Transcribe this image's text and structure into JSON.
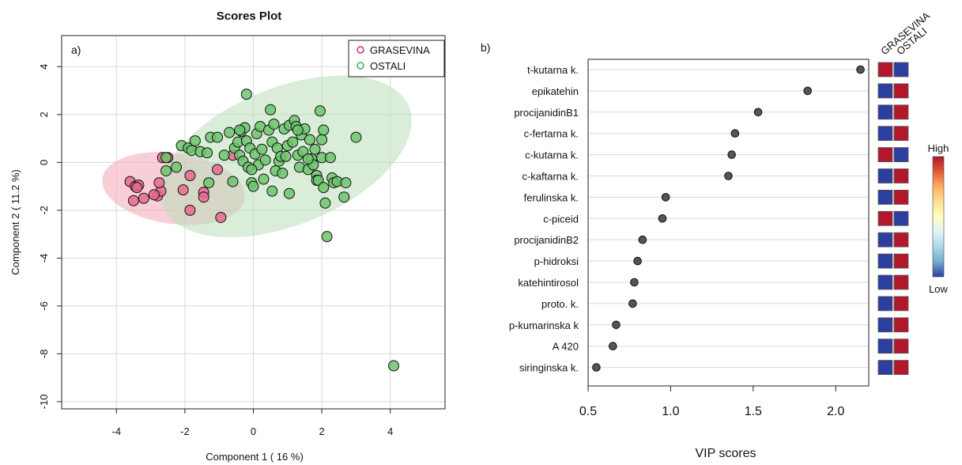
{
  "chart_data": [
    {
      "type": "scatter",
      "panel_label": "a)",
      "title": "Scores Plot",
      "xlabel": "Component 1 ( 16 %)",
      "ylabel": "Component 2 ( 11.2 %)",
      "xlim": [
        -5.6,
        5.6
      ],
      "ylim": [
        -10.3,
        5.3
      ],
      "xticks": [
        -4,
        -2,
        0,
        2,
        4
      ],
      "yticks": [
        -10,
        -8,
        -6,
        -4,
        -2,
        0,
        2,
        4
      ],
      "grid": true,
      "legend_position": "top-right",
      "series": [
        {
          "name": "GRASEVINA",
          "color": "#e8698f",
          "ellipse": {
            "cx": -2.33,
            "cy": -1.09,
            "rx": 2.1,
            "ry": 1.48,
            "angle_deg": 8,
            "fill": "#f2a5b7"
          },
          "points": [
            [
              -3.6,
              -0.8
            ],
            [
              -3.45,
              -1.0
            ],
            [
              -3.35,
              -0.95
            ],
            [
              -3.5,
              -1.6
            ],
            [
              -3.2,
              -1.5
            ],
            [
              -2.8,
              -1.4
            ],
            [
              -2.7,
              -1.2
            ],
            [
              -2.75,
              -0.85
            ],
            [
              -2.65,
              0.2
            ],
            [
              -2.5,
              0.2
            ],
            [
              -2.05,
              -1.15
            ],
            [
              -1.85,
              -0.55
            ],
            [
              -1.85,
              -2.0
            ],
            [
              -1.45,
              -1.25
            ],
            [
              -1.45,
              -1.45
            ],
            [
              -1.05,
              -0.3
            ],
            [
              -0.95,
              -2.3
            ],
            [
              -0.6,
              0.3
            ],
            [
              -3.4,
              -1.05
            ],
            [
              -2.9,
              -1.35
            ]
          ]
        },
        {
          "name": "OSTALI",
          "color": "#6cc46c",
          "ellipse": {
            "cx": 0.95,
            "cy": 0.25,
            "rx": 3.88,
            "ry": 2.87,
            "angle_deg": -22,
            "fill": "#b9dfb9"
          },
          "points": [
            [
              -2.55,
              0.2
            ],
            [
              -2.55,
              -0.35
            ],
            [
              -2.25,
              -0.2
            ],
            [
              -2.1,
              0.7
            ],
            [
              -1.9,
              0.6
            ],
            [
              -1.8,
              0.5
            ],
            [
              -1.7,
              0.9
            ],
            [
              -1.55,
              0.45
            ],
            [
              -1.35,
              0.4
            ],
            [
              -1.3,
              -0.85
            ],
            [
              -1.25,
              1.05
            ],
            [
              -1.05,
              1.05
            ],
            [
              -0.85,
              0.3
            ],
            [
              -0.7,
              1.25
            ],
            [
              -0.6,
              -0.8
            ],
            [
              -0.55,
              0.6
            ],
            [
              -0.45,
              0.85
            ],
            [
              -0.4,
              0.3
            ],
            [
              -0.35,
              1.3
            ],
            [
              -0.3,
              0.05
            ],
            [
              -0.25,
              1.45
            ],
            [
              -0.2,
              0.9
            ],
            [
              -0.2,
              2.85
            ],
            [
              -0.15,
              -0.2
            ],
            [
              -0.1,
              0.6
            ],
            [
              -0.05,
              -0.85
            ],
            [
              0.0,
              -1.0
            ],
            [
              0.05,
              0.35
            ],
            [
              0.1,
              1.2
            ],
            [
              0.15,
              -0.1
            ],
            [
              0.2,
              1.5
            ],
            [
              0.25,
              0.55
            ],
            [
              0.3,
              -0.7
            ],
            [
              0.45,
              1.35
            ],
            [
              0.5,
              2.2
            ],
            [
              0.55,
              0.85
            ],
            [
              0.55,
              -1.2
            ],
            [
              0.6,
              1.6
            ],
            [
              0.65,
              -0.35
            ],
            [
              0.7,
              0.6
            ],
            [
              0.75,
              0.05
            ],
            [
              0.8,
              0.25
            ],
            [
              0.85,
              -0.45
            ],
            [
              0.9,
              1.4
            ],
            [
              1.0,
              0.7
            ],
            [
              1.05,
              1.55
            ],
            [
              1.05,
              -1.3
            ],
            [
              1.15,
              0.85
            ],
            [
              1.2,
              1.75
            ],
            [
              1.25,
              1.5
            ],
            [
              1.3,
              0.3
            ],
            [
              1.35,
              -0.2
            ],
            [
              1.4,
              1.15
            ],
            [
              1.45,
              0.45
            ],
            [
              1.5,
              1.4
            ],
            [
              1.6,
              -0.3
            ],
            [
              1.65,
              0.95
            ],
            [
              1.7,
              0.15
            ],
            [
              1.75,
              -0.1
            ],
            [
              1.8,
              0.55
            ],
            [
              1.85,
              -0.55
            ],
            [
              1.85,
              -0.75
            ],
            [
              1.9,
              -0.75
            ],
            [
              1.95,
              2.15
            ],
            [
              2.0,
              0.95
            ],
            [
              2.0,
              0.2
            ],
            [
              2.05,
              -1.05
            ],
            [
              2.05,
              1.35
            ],
            [
              2.1,
              -1.7
            ],
            [
              2.15,
              -3.1
            ],
            [
              2.25,
              0.2
            ],
            [
              2.3,
              -0.65
            ],
            [
              2.35,
              -0.85
            ],
            [
              2.45,
              -0.8
            ],
            [
              2.65,
              -1.45
            ],
            [
              2.7,
              -0.85
            ],
            [
              3.0,
              1.05
            ],
            [
              4.1,
              -8.5
            ],
            [
              0.95,
              0.25
            ],
            [
              1.3,
              1.35
            ],
            [
              -0.05,
              -0.3
            ],
            [
              0.35,
              0.1
            ],
            [
              1.6,
              0.15
            ],
            [
              -0.4,
              1.35
            ]
          ]
        }
      ]
    },
    {
      "type": "scatter",
      "panel_label": "b)",
      "xlabel": "VIP scores",
      "xlim": [
        0.5,
        2.2
      ],
      "xticks": [
        "0.5",
        "1.0",
        "1.5",
        "2.0"
      ],
      "features": [
        "t-kutarna k.",
        "epikatehin",
        "procijanidinB1",
        "c-fertarna k.",
        "c-kutarna k.",
        "c-kaftarna k.",
        "ferulinska k.",
        "c-piceid",
        "procijanidinB2",
        "p-hidroksi",
        "katehintirosol",
        "proto. k.",
        "p-kumarinska k",
        "A 420",
        "siringinska k."
      ],
      "values": [
        2.15,
        1.83,
        1.53,
        1.39,
        1.37,
        1.35,
        0.97,
        0.95,
        0.83,
        0.8,
        0.78,
        0.77,
        0.67,
        0.65,
        0.55
      ],
      "heatmap": {
        "columns": [
          "GRASEVINA",
          "OSTALI"
        ],
        "high_color": "#b2182b",
        "low_color": "#2c3e9e",
        "cells": [
          [
            "high",
            "low"
          ],
          [
            "low",
            "high"
          ],
          [
            "low",
            "high"
          ],
          [
            "low",
            "high"
          ],
          [
            "high",
            "low"
          ],
          [
            "low",
            "high"
          ],
          [
            "low",
            "high"
          ],
          [
            "high",
            "low"
          ],
          [
            "low",
            "high"
          ],
          [
            "low",
            "high"
          ],
          [
            "low",
            "high"
          ],
          [
            "low",
            "high"
          ],
          [
            "low",
            "high"
          ],
          [
            "low",
            "high"
          ],
          [
            "low",
            "high"
          ]
        ]
      },
      "colorbar": {
        "high_label": "High",
        "low_label": "Low",
        "stops": [
          "#b2182b",
          "#e05a3a",
          "#fdae61",
          "#fee090",
          "#ffffbf",
          "#e0f3f8",
          "#abd9e9",
          "#74add1",
          "#2c3e9e"
        ]
      }
    }
  ]
}
